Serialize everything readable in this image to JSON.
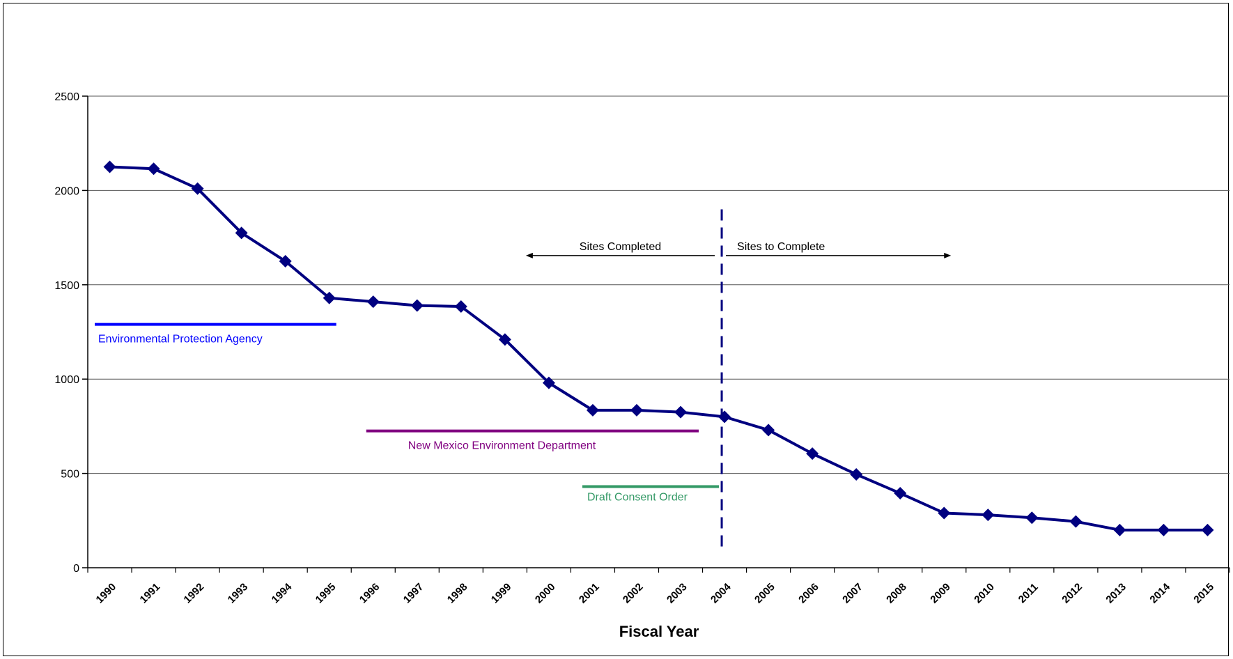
{
  "chart_data": {
    "type": "line",
    "title": "",
    "xlabel": "Fiscal Year",
    "ylabel": "",
    "ylim": [
      0,
      2500
    ],
    "yticks": [
      0,
      500,
      1000,
      1500,
      2000,
      2500
    ],
    "grid": true,
    "categories": [
      "1990",
      "1991",
      "1992",
      "1993",
      "1994",
      "1995",
      "1996",
      "1997",
      "1998",
      "1999",
      "2000",
      "2001",
      "2002",
      "2003",
      "2004",
      "2005",
      "2006",
      "2007",
      "2008",
      "2009",
      "2010",
      "2011",
      "2012",
      "2013",
      "2014",
      "2015"
    ],
    "series": [
      {
        "color": "#000080",
        "values": [
          2125,
          2115,
          2010,
          1775,
          1625,
          1430,
          1410,
          1390,
          1385,
          1210,
          980,
          835,
          835,
          825,
          800,
          730,
          605,
          495,
          395,
          290,
          280,
          265,
          245,
          200,
          200,
          200
        ]
      }
    ],
    "divider": {
      "year": "2004",
      "color": "#000080",
      "style": "dashed"
    },
    "annotations": {
      "completed": "Sites Completed",
      "to_complete": "Sites to Complete",
      "epa": {
        "label": "Environmental Protection Agency",
        "color": "#0000ff",
        "from": "1990",
        "to": "1995",
        "y": 1290
      },
      "nmed": {
        "label": "New Mexico Environment Department",
        "color": "#800080",
        "from": "1996",
        "to": "2003",
        "y": 725
      },
      "consent": {
        "label": "Draft Consent Order",
        "color": "#339966",
        "from": "2001",
        "to": "2004",
        "y": 430
      }
    }
  }
}
